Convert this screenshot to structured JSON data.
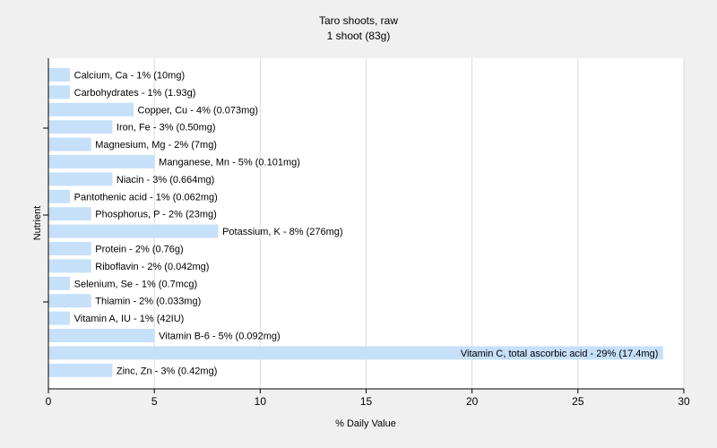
{
  "chart_data": {
    "type": "bar",
    "orientation": "horizontal",
    "title": "Taro shoots, raw",
    "subtitle": "1 shoot (83g)",
    "xlabel": "% Daily Value",
    "ylabel": "Nutrient",
    "xlim": [
      0,
      30
    ],
    "xticks": [
      0,
      5,
      10,
      15,
      20,
      25,
      30
    ],
    "grid": "vertical",
    "legend": "none",
    "colors": {
      "background": "#f0f0f0",
      "plot_background": "#ffffff",
      "bar": "#c6e0fa",
      "grid": "#dcdcdc",
      "axis": "#000000"
    },
    "categories": [
      "Calcium, Ca",
      "Carbohydrates",
      "Copper, Cu",
      "Iron, Fe",
      "Magnesium, Mg",
      "Manganese, Mn",
      "Niacin",
      "Pantothenic acid",
      "Phosphorus, P",
      "Potassium, K",
      "Protein",
      "Riboflavin",
      "Selenium, Se",
      "Thiamin",
      "Vitamin A, IU",
      "Vitamin B-6",
      "Vitamin C, total ascorbic acid",
      "Zinc, Zn"
    ],
    "values": [
      1,
      1,
      4,
      3,
      2,
      5,
      3,
      1,
      2,
      8,
      2,
      2,
      1,
      2,
      1,
      5,
      29,
      3
    ],
    "labels": [
      "Calcium, Ca - 1% (10mg)",
      "Carbohydrates - 1% (1.93g)",
      "Copper, Cu - 4% (0.073mg)",
      "Iron, Fe - 3% (0.50mg)",
      "Magnesium, Mg - 2% (7mg)",
      "Manganese, Mn - 5% (0.101mg)",
      "Niacin - 3% (0.664mg)",
      "Pantothenic acid - 1% (0.062mg)",
      "Phosphorus, P - 2% (23mg)",
      "Potassium, K - 8% (276mg)",
      "Protein - 2% (0.76g)",
      "Riboflavin - 2% (0.042mg)",
      "Selenium, Se - 1% (0.7mcg)",
      "Thiamin - 2% (0.033mg)",
      "Vitamin A, IU - 1% (42IU)",
      "Vitamin B-6 - 5% (0.092mg)",
      "Vitamin C, total ascorbic acid - 29% (17.4mg)",
      "Zinc, Zn - 3% (0.42mg)"
    ]
  }
}
